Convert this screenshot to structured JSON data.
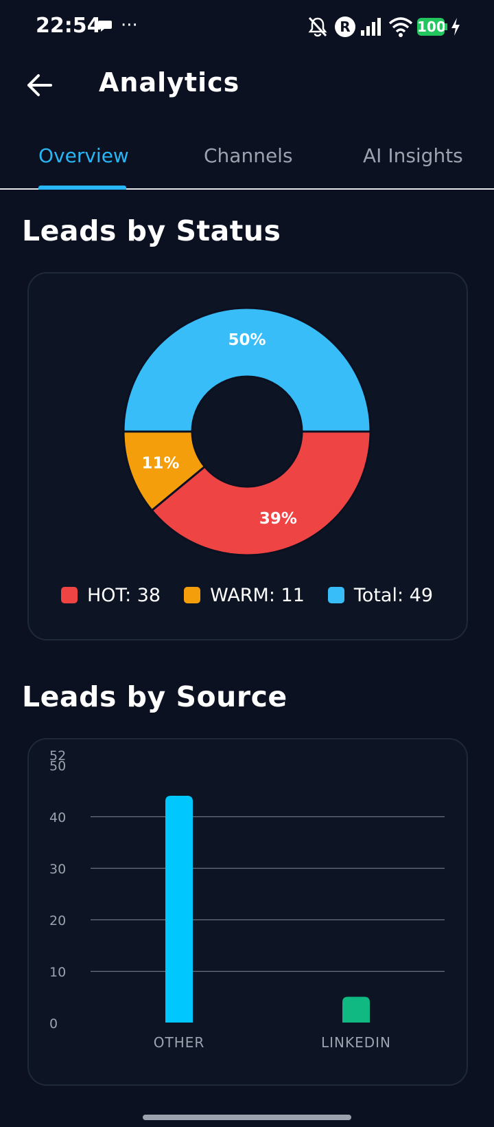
{
  "status_bar": {
    "time": "22:54",
    "battery": "100",
    "more": "···",
    "roaming": "R"
  },
  "app_bar": {
    "title": "Analytics"
  },
  "tabs": [
    {
      "label": "Overview",
      "active": true
    },
    {
      "label": "Channels",
      "active": false
    },
    {
      "label": "AI Insights",
      "active": false
    }
  ],
  "sections": {
    "status_title": "Leads by Status",
    "source_title": "Leads by Source"
  },
  "legend": [
    {
      "label": "HOT: 38",
      "color": "#ef4444"
    },
    {
      "label": "WARM: 11",
      "color": "#f59e0b"
    },
    {
      "label": "Total: 49",
      "color": "#38bdf8"
    }
  ],
  "chart_data": [
    {
      "type": "pie",
      "variant": "donut",
      "slices": [
        {
          "name": "Total",
          "value": 50,
          "label": "50%",
          "color": "#38bdf8"
        },
        {
          "name": "HOT",
          "value": 39,
          "label": "39%",
          "color": "#ef4444"
        },
        {
          "name": "WARM",
          "value": 11,
          "label": "11%",
          "color": "#f59e0b"
        }
      ],
      "legend_placement": "bottom"
    },
    {
      "type": "bar",
      "categories": [
        "OTHER",
        "LINKEDIN"
      ],
      "values": [
        44,
        5
      ],
      "colors": [
        "#00c8ff",
        "#10b981"
      ],
      "yticks": [
        0,
        10,
        20,
        30,
        40,
        50,
        52
      ],
      "ylim": [
        0,
        52
      ],
      "grid": true
    }
  ]
}
